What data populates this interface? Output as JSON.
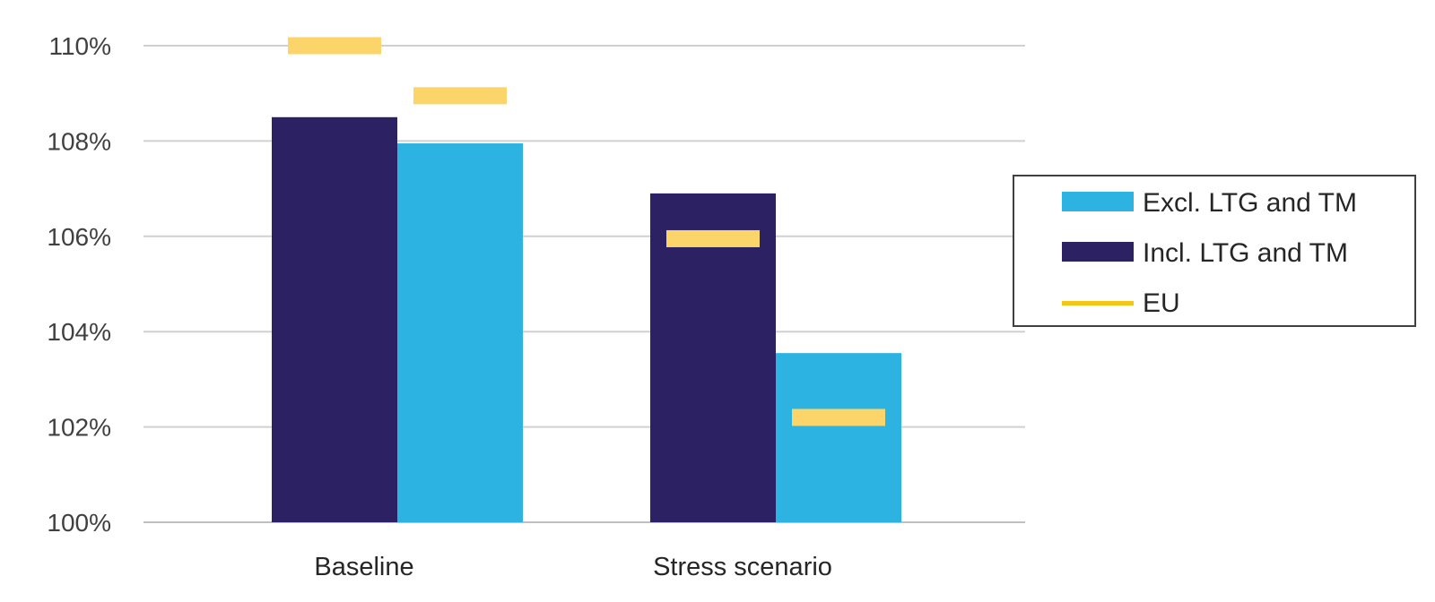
{
  "chart_data": {
    "type": "bar",
    "categories": [
      "Baseline",
      "Stress scenario"
    ],
    "series": [
      {
        "name": "Incl. LTG and TM",
        "kind": "bar",
        "color": "#2c2162",
        "values": [
          108.5,
          106.9
        ]
      },
      {
        "name": "Excl. LTG and TM",
        "kind": "bar",
        "color": "#2db3e2",
        "values": [
          107.95,
          103.55
        ]
      },
      {
        "name": "EU",
        "kind": "marker",
        "color": "#fcd56a",
        "values": [
          [
            110.0,
            108.95
          ],
          [
            105.95,
            102.2
          ]
        ]
      }
    ],
    "yticks": [
      "100%",
      "102%",
      "104%",
      "106%",
      "108%",
      "110%"
    ],
    "ylim": [
      100,
      110
    ],
    "grid": true,
    "legend": {
      "position": "right",
      "items": [
        {
          "label": "Excl. LTG and TM",
          "color": "#2db3e2",
          "symbol": "bar"
        },
        {
          "label": "Incl. LTG and TM",
          "color": "#2c2162",
          "symbol": "bar"
        },
        {
          "label": "EU",
          "color": "#f5c518",
          "symbol": "line"
        }
      ]
    }
  }
}
